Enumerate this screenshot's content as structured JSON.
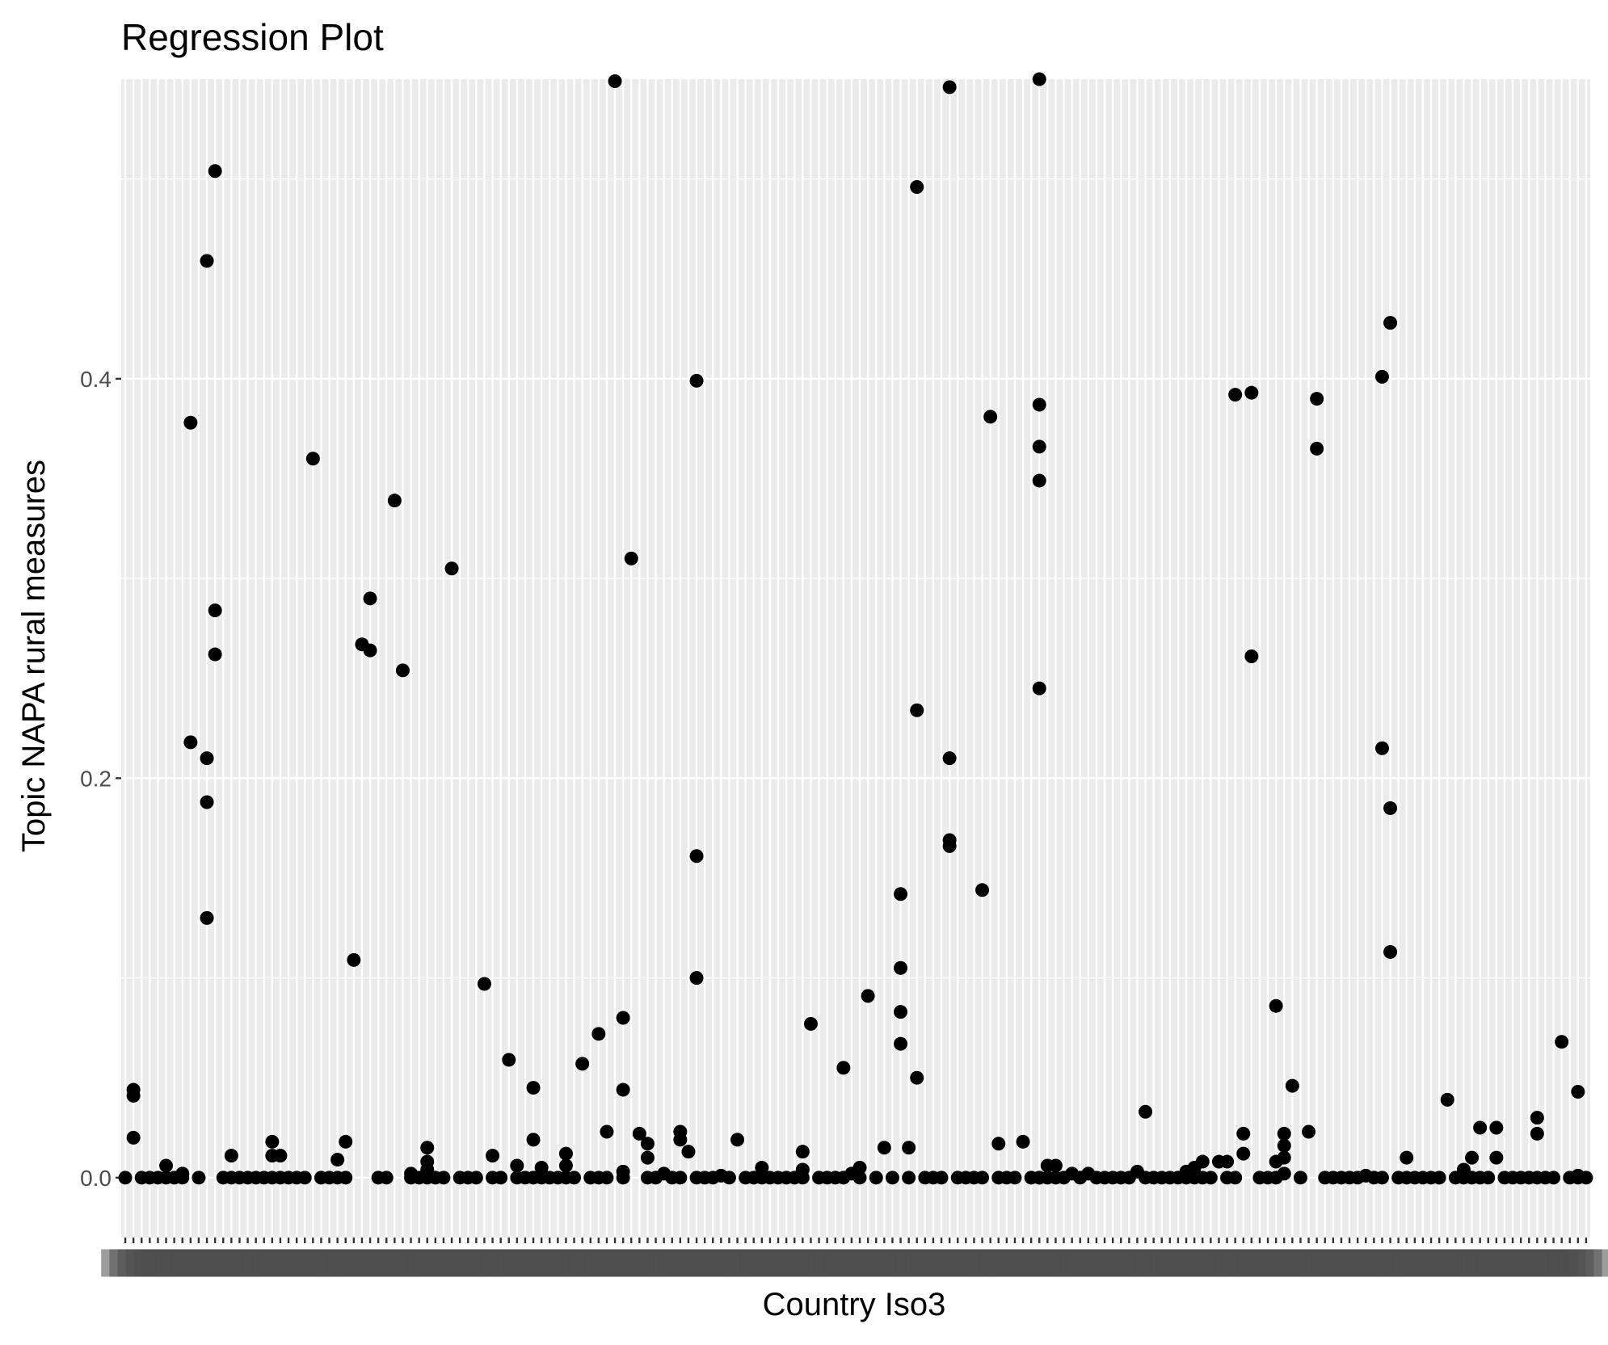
{
  "chart_data": {
    "type": "scatter",
    "title": "Regression Plot",
    "xlabel": "Country Iso3",
    "ylabel": "Topic NAPA rural measures",
    "x_type": "categorical",
    "category_count": 180,
    "ylim": [
      -0.03,
      0.55
    ],
    "yticks": [
      0.0,
      0.2,
      0.4
    ],
    "ytick_labels": [
      "0.0",
      "0.2",
      "0.4"
    ],
    "grid": true,
    "legend": "none",
    "panel_color": "#ebebeb",
    "grid_color": "#ffffff",
    "point_color": "#000000",
    "points": [
      {
        "x": 1,
        "y": 0.0
      },
      {
        "x": 2,
        "y": 0.044
      },
      {
        "x": 2,
        "y": 0.041
      },
      {
        "x": 2,
        "y": 0.02
      },
      {
        "x": 3,
        "y": 0.0
      },
      {
        "x": 4,
        "y": 0.0
      },
      {
        "x": 5,
        "y": 0.0
      },
      {
        "x": 6,
        "y": 0.0
      },
      {
        "x": 6,
        "y": 0.006
      },
      {
        "x": 7,
        "y": 0.0
      },
      {
        "x": 8,
        "y": 0.0
      },
      {
        "x": 8,
        "y": 0.002
      },
      {
        "x": 9,
        "y": 0.378
      },
      {
        "x": 9,
        "y": 0.218
      },
      {
        "x": 10,
        "y": 0.0
      },
      {
        "x": 11,
        "y": 0.459
      },
      {
        "x": 11,
        "y": 0.21
      },
      {
        "x": 11,
        "y": 0.188
      },
      {
        "x": 11,
        "y": 0.13
      },
      {
        "x": 12,
        "y": 0.504
      },
      {
        "x": 12,
        "y": 0.284
      },
      {
        "x": 12,
        "y": 0.262
      },
      {
        "x": 13,
        "y": 0.0
      },
      {
        "x": 14,
        "y": 0.0
      },
      {
        "x": 14,
        "y": 0.011
      },
      {
        "x": 15,
        "y": 0.0
      },
      {
        "x": 16,
        "y": 0.0
      },
      {
        "x": 17,
        "y": 0.0
      },
      {
        "x": 18,
        "y": 0.0
      },
      {
        "x": 19,
        "y": 0.0
      },
      {
        "x": 19,
        "y": 0.018
      },
      {
        "x": 19,
        "y": 0.011
      },
      {
        "x": 20,
        "y": 0.0
      },
      {
        "x": 20,
        "y": 0.011
      },
      {
        "x": 21,
        "y": 0.0
      },
      {
        "x": 22,
        "y": 0.0
      },
      {
        "x": 23,
        "y": 0.0
      },
      {
        "x": 24,
        "y": 0.36
      },
      {
        "x": 25,
        "y": 0.0
      },
      {
        "x": 26,
        "y": 0.0
      },
      {
        "x": 27,
        "y": 0.0
      },
      {
        "x": 27,
        "y": 0.009
      },
      {
        "x": 28,
        "y": 0.0
      },
      {
        "x": 28,
        "y": 0.018
      },
      {
        "x": 29,
        "y": 0.109
      },
      {
        "x": 30,
        "y": 0.267
      },
      {
        "x": 31,
        "y": 0.29
      },
      {
        "x": 31,
        "y": 0.264
      },
      {
        "x": 32,
        "y": 0.0
      },
      {
        "x": 33,
        "y": 0.0
      },
      {
        "x": 34,
        "y": 0.339
      },
      {
        "x": 35,
        "y": 0.254
      },
      {
        "x": 36,
        "y": 0.0
      },
      {
        "x": 36,
        "y": 0.002
      },
      {
        "x": 37,
        "y": 0.0
      },
      {
        "x": 38,
        "y": 0.015
      },
      {
        "x": 38,
        "y": 0.008
      },
      {
        "x": 38,
        "y": 0.004
      },
      {
        "x": 38,
        "y": 0.0
      },
      {
        "x": 39,
        "y": 0.0
      },
      {
        "x": 40,
        "y": 0.0
      },
      {
        "x": 41,
        "y": 0.305
      },
      {
        "x": 42,
        "y": 0.0
      },
      {
        "x": 43,
        "y": 0.0
      },
      {
        "x": 44,
        "y": 0.0
      },
      {
        "x": 45,
        "y": 0.097
      },
      {
        "x": 46,
        "y": 0.0
      },
      {
        "x": 46,
        "y": 0.011
      },
      {
        "x": 47,
        "y": 0.0
      },
      {
        "x": 48,
        "y": 0.059
      },
      {
        "x": 49,
        "y": 0.0
      },
      {
        "x": 49,
        "y": 0.006
      },
      {
        "x": 50,
        "y": 0.0
      },
      {
        "x": 51,
        "y": 0.045
      },
      {
        "x": 51,
        "y": 0.019
      },
      {
        "x": 51,
        "y": 0.0
      },
      {
        "x": 52,
        "y": 0.0
      },
      {
        "x": 52,
        "y": 0.005
      },
      {
        "x": 53,
        "y": 0.0
      },
      {
        "x": 54,
        "y": 0.0
      },
      {
        "x": 55,
        "y": 0.012
      },
      {
        "x": 55,
        "y": 0.006
      },
      {
        "x": 55,
        "y": 0.0
      },
      {
        "x": 56,
        "y": 0.0
      },
      {
        "x": 57,
        "y": 0.057
      },
      {
        "x": 58,
        "y": 0.0
      },
      {
        "x": 59,
        "y": 0.072
      },
      {
        "x": 59,
        "y": 0.0
      },
      {
        "x": 60,
        "y": 0.023
      },
      {
        "x": 60,
        "y": 0.0
      },
      {
        "x": 61,
        "y": 0.549
      },
      {
        "x": 62,
        "y": 0.08
      },
      {
        "x": 62,
        "y": 0.044
      },
      {
        "x": 62,
        "y": 0.003
      },
      {
        "x": 62,
        "y": 0.0
      },
      {
        "x": 63,
        "y": 0.31
      },
      {
        "x": 64,
        "y": 0.022
      },
      {
        "x": 65,
        "y": 0.017
      },
      {
        "x": 65,
        "y": 0.01
      },
      {
        "x": 65,
        "y": 0.0
      },
      {
        "x": 66,
        "y": 0.0
      },
      {
        "x": 67,
        "y": 0.002
      },
      {
        "x": 68,
        "y": 0.0
      },
      {
        "x": 69,
        "y": 0.023
      },
      {
        "x": 69,
        "y": 0.019
      },
      {
        "x": 69,
        "y": 0.0
      },
      {
        "x": 70,
        "y": 0.013
      },
      {
        "x": 71,
        "y": 0.399
      },
      {
        "x": 71,
        "y": 0.161
      },
      {
        "x": 71,
        "y": 0.1
      },
      {
        "x": 71,
        "y": 0.0
      },
      {
        "x": 72,
        "y": 0.0
      },
      {
        "x": 73,
        "y": 0.0
      },
      {
        "x": 74,
        "y": 0.001
      },
      {
        "x": 75,
        "y": 0.0
      },
      {
        "x": 76,
        "y": 0.019
      },
      {
        "x": 77,
        "y": 0.0
      },
      {
        "x": 78,
        "y": 0.0
      },
      {
        "x": 79,
        "y": 0.0
      },
      {
        "x": 79,
        "y": 0.005
      },
      {
        "x": 80,
        "y": 0.0
      },
      {
        "x": 81,
        "y": 0.0
      },
      {
        "x": 82,
        "y": 0.0
      },
      {
        "x": 83,
        "y": 0.0
      },
      {
        "x": 84,
        "y": 0.013
      },
      {
        "x": 84,
        "y": 0.004
      },
      {
        "x": 84,
        "y": 0.0
      },
      {
        "x": 85,
        "y": 0.077
      },
      {
        "x": 86,
        "y": 0.0
      },
      {
        "x": 87,
        "y": 0.0
      },
      {
        "x": 88,
        "y": 0.0
      },
      {
        "x": 89,
        "y": 0.055
      },
      {
        "x": 89,
        "y": 0.0
      },
      {
        "x": 90,
        "y": 0.002
      },
      {
        "x": 91,
        "y": 0.0
      },
      {
        "x": 91,
        "y": 0.005
      },
      {
        "x": 92,
        "y": 0.091
      },
      {
        "x": 93,
        "y": 0.0
      },
      {
        "x": 94,
        "y": 0.015
      },
      {
        "x": 95,
        "y": 0.0
      },
      {
        "x": 96,
        "y": 0.142
      },
      {
        "x": 96,
        "y": 0.105
      },
      {
        "x": 96,
        "y": 0.083
      },
      {
        "x": 96,
        "y": 0.067
      },
      {
        "x": 97,
        "y": 0.015
      },
      {
        "x": 97,
        "y": 0.0
      },
      {
        "x": 98,
        "y": 0.496
      },
      {
        "x": 98,
        "y": 0.234
      },
      {
        "x": 98,
        "y": 0.05
      },
      {
        "x": 99,
        "y": 0.0
      },
      {
        "x": 100,
        "y": 0.0
      },
      {
        "x": 101,
        "y": 0.0
      },
      {
        "x": 102,
        "y": 0.546
      },
      {
        "x": 102,
        "y": 0.21
      },
      {
        "x": 102,
        "y": 0.169
      },
      {
        "x": 102,
        "y": 0.166
      },
      {
        "x": 103,
        "y": 0.0
      },
      {
        "x": 104,
        "y": 0.0
      },
      {
        "x": 105,
        "y": 0.0
      },
      {
        "x": 106,
        "y": 0.144
      },
      {
        "x": 106,
        "y": 0.0
      },
      {
        "x": 107,
        "y": 0.381
      },
      {
        "x": 108,
        "y": 0.0
      },
      {
        "x": 108,
        "y": 0.017
      },
      {
        "x": 109,
        "y": 0.0
      },
      {
        "x": 110,
        "y": 0.0
      },
      {
        "x": 111,
        "y": 0.018
      },
      {
        "x": 112,
        "y": 0.0
      },
      {
        "x": 113,
        "y": 0.0
      },
      {
        "x": 113,
        "y": 0.0
      },
      {
        "x": 114,
        "y": 0.0
      },
      {
        "x": 113,
        "y": 0.55
      },
      {
        "x": 113,
        "y": 0.387
      },
      {
        "x": 113,
        "y": 0.366
      },
      {
        "x": 113,
        "y": 0.349
      },
      {
        "x": 113,
        "y": 0.245
      },
      {
        "x": 114,
        "y": 0.006
      },
      {
        "x": 115,
        "y": 0.006
      },
      {
        "x": 115,
        "y": 0.0
      },
      {
        "x": 116,
        "y": 0.0
      },
      {
        "x": 117,
        "y": 0.002
      },
      {
        "x": 118,
        "y": 0.0
      },
      {
        "x": 119,
        "y": 0.002
      },
      {
        "x": 120,
        "y": 0.0
      },
      {
        "x": 121,
        "y": 0.0
      },
      {
        "x": 122,
        "y": 0.0
      },
      {
        "x": 123,
        "y": 0.0
      },
      {
        "x": 124,
        "y": 0.0
      },
      {
        "x": 125,
        "y": 0.003
      },
      {
        "x": 126,
        "y": 0.033
      },
      {
        "x": 126,
        "y": 0.0
      },
      {
        "x": 127,
        "y": 0.0
      },
      {
        "x": 128,
        "y": 0.0
      },
      {
        "x": 129,
        "y": 0.0
      },
      {
        "x": 130,
        "y": 0.0
      },
      {
        "x": 131,
        "y": 0.003
      },
      {
        "x": 131,
        "y": 0.0
      },
      {
        "x": 132,
        "y": 0.005
      },
      {
        "x": 132,
        "y": 0.0
      },
      {
        "x": 133,
        "y": 0.008
      },
      {
        "x": 133,
        "y": 0.0
      },
      {
        "x": 134,
        "y": 0.0
      },
      {
        "x": 135,
        "y": 0.008
      },
      {
        "x": 136,
        "y": 0.008
      },
      {
        "x": 136,
        "y": 0.0
      },
      {
        "x": 137,
        "y": 0.0
      },
      {
        "x": 137,
        "y": 0.392
      },
      {
        "x": 138,
        "y": 0.022
      },
      {
        "x": 138,
        "y": 0.012
      },
      {
        "x": 139,
        "y": 0.393
      },
      {
        "x": 139,
        "y": 0.261
      },
      {
        "x": 140,
        "y": 0.0
      },
      {
        "x": 141,
        "y": 0.0
      },
      {
        "x": 142,
        "y": 0.0
      },
      {
        "x": 142,
        "y": 0.086
      },
      {
        "x": 142,
        "y": 0.008
      },
      {
        "x": 143,
        "y": 0.022
      },
      {
        "x": 143,
        "y": 0.016
      },
      {
        "x": 143,
        "y": 0.01
      },
      {
        "x": 143,
        "y": 0.002
      },
      {
        "x": 144,
        "y": 0.046
      },
      {
        "x": 145,
        "y": 0.0
      },
      {
        "x": 146,
        "y": 0.023
      },
      {
        "x": 147,
        "y": 0.39
      },
      {
        "x": 147,
        "y": 0.365
      },
      {
        "x": 148,
        "y": 0.0
      },
      {
        "x": 149,
        "y": 0.0
      },
      {
        "x": 150,
        "y": 0.0
      },
      {
        "x": 151,
        "y": 0.0
      },
      {
        "x": 152,
        "y": 0.0
      },
      {
        "x": 153,
        "y": 0.001
      },
      {
        "x": 154,
        "y": 0.0
      },
      {
        "x": 155,
        "y": 0.0
      },
      {
        "x": 155,
        "y": 0.401
      },
      {
        "x": 155,
        "y": 0.215
      },
      {
        "x": 156,
        "y": 0.428
      },
      {
        "x": 156,
        "y": 0.185
      },
      {
        "x": 156,
        "y": 0.113
      },
      {
        "x": 157,
        "y": 0.0
      },
      {
        "x": 158,
        "y": 0.01
      },
      {
        "x": 158,
        "y": 0.0
      },
      {
        "x": 159,
        "y": 0.0
      },
      {
        "x": 160,
        "y": 0.0
      },
      {
        "x": 161,
        "y": 0.0
      },
      {
        "x": 162,
        "y": 0.0
      },
      {
        "x": 163,
        "y": 0.039
      },
      {
        "x": 164,
        "y": 0.0
      },
      {
        "x": 165,
        "y": 0.0
      },
      {
        "x": 165,
        "y": 0.004
      },
      {
        "x": 166,
        "y": 0.01
      },
      {
        "x": 166,
        "y": 0.0
      },
      {
        "x": 167,
        "y": 0.025
      },
      {
        "x": 167,
        "y": 0.0
      },
      {
        "x": 168,
        "y": 0.0
      },
      {
        "x": 169,
        "y": 0.025
      },
      {
        "x": 169,
        "y": 0.01
      },
      {
        "x": 170,
        "y": 0.0
      },
      {
        "x": 171,
        "y": 0.0
      },
      {
        "x": 172,
        "y": 0.0
      },
      {
        "x": 173,
        "y": 0.0
      },
      {
        "x": 174,
        "y": 0.03
      },
      {
        "x": 174,
        "y": 0.022
      },
      {
        "x": 174,
        "y": 0.0
      },
      {
        "x": 175,
        "y": 0.0
      },
      {
        "x": 176,
        "y": 0.0
      },
      {
        "x": 177,
        "y": 0.068
      },
      {
        "x": 178,
        "y": 0.0
      },
      {
        "x": 179,
        "y": 0.043
      },
      {
        "x": 179,
        "y": 0.001
      },
      {
        "x": 179,
        "y": 0.0
      },
      {
        "x": 180,
        "y": 0.0
      }
    ]
  }
}
